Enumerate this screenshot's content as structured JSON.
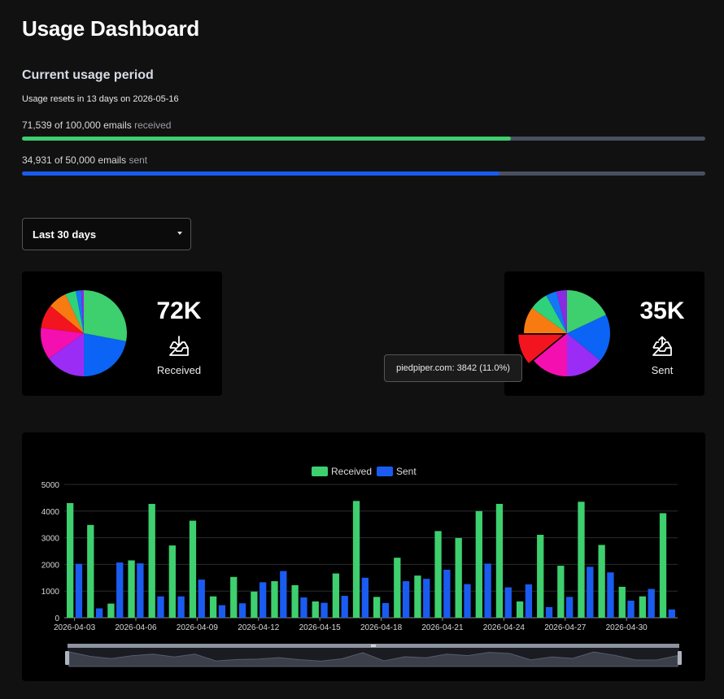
{
  "page": {
    "title": "Usage Dashboard"
  },
  "period": {
    "heading": "Current usage period",
    "reset_text": "Usage resets in 13 days on 2026-05-16",
    "received": {
      "count_text": "71,539 of 100,000 emails",
      "suffix": "received",
      "fraction": 0.715,
      "color": "#3ecf6e"
    },
    "sent": {
      "count_text": "34,931 of 50,000 emails",
      "suffix": "sent",
      "fraction": 0.699,
      "color": "#1a5cf0"
    }
  },
  "range_select": {
    "value": "Last 30 days"
  },
  "cards": {
    "received": {
      "value": "72K",
      "label": "Received",
      "icon": "inbox-download-icon"
    },
    "sent": {
      "value": "35K",
      "label": "Sent",
      "icon": "inbox-upload-icon"
    }
  },
  "pie_colors": [
    "#3ecf6e",
    "#0b64f5",
    "#9b2cf5",
    "#f40fb0",
    "#f2141e",
    "#f77b10",
    "#2fd27a",
    "#1477f5",
    "#8a2be2"
  ],
  "pies": {
    "received": [
      28,
      22,
      15,
      12,
      9,
      7,
      4,
      2,
      1
    ],
    "sent": [
      18,
      18,
      14,
      14,
      11,
      10,
      7,
      4,
      4
    ]
  },
  "tooltip": {
    "text": "piedpiper.com: 3842 (11.0%)"
  },
  "chart_data": {
    "type": "bar",
    "legend": [
      "Received",
      "Sent"
    ],
    "colors": [
      "#3ecf6e",
      "#1a5cf0"
    ],
    "ylim": [
      0,
      5000
    ],
    "yticks": [
      "0",
      "1000",
      "2000",
      "3000",
      "4000",
      "5000"
    ],
    "x_tick_labels": [
      "2026-04-03",
      "2026-04-06",
      "2026-04-09",
      "2026-04-12",
      "2026-04-15",
      "2026-04-18",
      "2026-04-21",
      "2026-04-24",
      "2026-04-27",
      "2026-04-30"
    ],
    "received": [
      4300,
      3480,
      530,
      2150,
      4270,
      2710,
      3640,
      800,
      1530,
      980,
      1370,
      1220,
      610,
      1660,
      4380,
      780,
      2250,
      1580,
      3250,
      2990,
      4000,
      4270,
      610,
      3110,
      1950,
      4350,
      2730,
      1160,
      800,
      3920
    ],
    "sent": [
      2020,
      350,
      2070,
      2040,
      800,
      800,
      1430,
      470,
      540,
      1330,
      1750,
      760,
      560,
      820,
      1500,
      550,
      1370,
      1460,
      1800,
      1260,
      2030,
      1140,
      1250,
      400,
      780,
      1910,
      1700,
      640,
      1080,
      310
    ]
  }
}
